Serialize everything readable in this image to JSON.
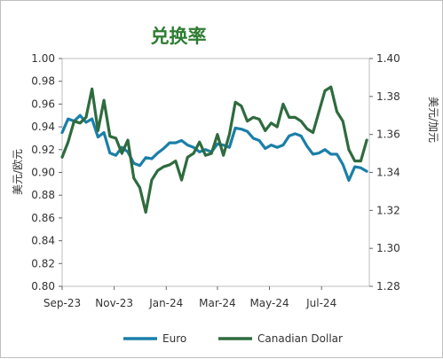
{
  "chart_data": {
    "type": "line",
    "title": "兑换率",
    "x": [
      "2023-09-01",
      "2023-09-08",
      "2023-09-15",
      "2023-09-22",
      "2023-09-29",
      "2023-10-06",
      "2023-10-13",
      "2023-10-20",
      "2023-10-27",
      "2023-11-03",
      "2023-11-10",
      "2023-11-17",
      "2023-11-24",
      "2023-12-01",
      "2023-12-08",
      "2023-12-15",
      "2023-12-22",
      "2023-12-29",
      "2024-01-05",
      "2024-01-12",
      "2024-01-19",
      "2024-01-26",
      "2024-02-02",
      "2024-02-09",
      "2024-02-16",
      "2024-02-23",
      "2024-03-01",
      "2024-03-08",
      "2024-03-15",
      "2024-03-22",
      "2024-03-29",
      "2024-04-05",
      "2024-04-12",
      "2024-04-19",
      "2024-04-26",
      "2024-05-03",
      "2024-05-10",
      "2024-05-17",
      "2024-05-24",
      "2024-05-31",
      "2024-06-07",
      "2024-06-14",
      "2024-06-21",
      "2024-06-28",
      "2024-07-05",
      "2024-07-12",
      "2024-07-19",
      "2024-07-26",
      "2024-08-02",
      "2024-08-09",
      "2024-08-16",
      "2024-08-23"
    ],
    "xticks": [
      "Sep-23",
      "Nov-23",
      "Jan-24",
      "Mar-24",
      "May-24",
      "Jul-24"
    ],
    "y_left": {
      "label": "美元/欧元",
      "lim": [
        0.8,
        1.0
      ],
      "ticks": [
        "0.80",
        "0.82",
        "0.84",
        "0.86",
        "0.88",
        "0.90",
        "0.92",
        "0.94",
        "0.96",
        "0.98",
        "1.00"
      ]
    },
    "y_right": {
      "label": "美元/加元",
      "lim": [
        1.28,
        1.4
      ],
      "ticks": [
        "1.28",
        "1.30",
        "1.32",
        "1.34",
        "1.36",
        "1.38",
        "1.40"
      ]
    },
    "legend_position": "bottom",
    "grid": false,
    "series": [
      {
        "name": "Euro",
        "axis": "left",
        "color": "#1a7fa8",
        "values": [
          0.935,
          0.947,
          0.945,
          0.95,
          0.944,
          0.947,
          0.931,
          0.935,
          0.917,
          0.915,
          0.922,
          0.918,
          0.908,
          0.906,
          0.913,
          0.912,
          0.917,
          0.921,
          0.926,
          0.926,
          0.928,
          0.924,
          0.922,
          0.918,
          0.92,
          0.918,
          0.925,
          0.924,
          0.922,
          0.939,
          0.938,
          0.936,
          0.93,
          0.928,
          0.921,
          0.924,
          0.922,
          0.924,
          0.932,
          0.934,
          0.932,
          0.923,
          0.916,
          0.917,
          0.92,
          0.916,
          0.916,
          0.907,
          0.893,
          0.905,
          0.904,
          0.901
        ]
      },
      {
        "name": "Canadian Dollar",
        "axis": "right",
        "color": "#2e6b3e",
        "values": [
          1.348,
          1.356,
          1.367,
          1.366,
          1.369,
          1.384,
          1.362,
          1.378,
          1.359,
          1.358,
          1.35,
          1.357,
          1.337,
          1.332,
          1.319,
          1.336,
          1.341,
          1.343,
          1.344,
          1.346,
          1.336,
          1.348,
          1.35,
          1.356,
          1.349,
          1.35,
          1.36,
          1.349,
          1.36,
          1.377,
          1.375,
          1.367,
          1.369,
          1.368,
          1.362,
          1.366,
          1.364,
          1.376,
          1.369,
          1.369,
          1.367,
          1.363,
          1.361,
          1.372,
          1.383,
          1.385,
          1.372,
          1.367,
          1.352,
          1.346,
          1.346,
          1.357
        ]
      }
    ]
  }
}
